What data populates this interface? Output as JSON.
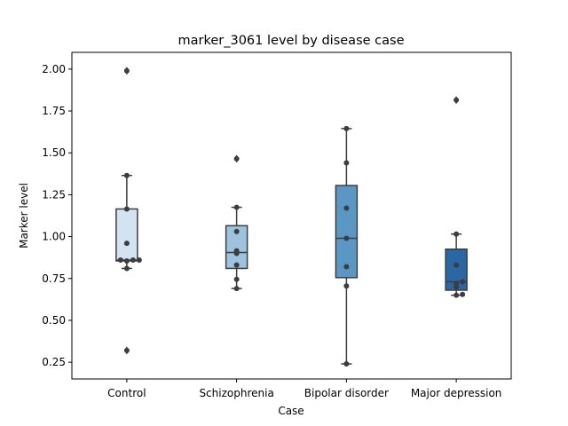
{
  "chart_data": {
    "type": "box",
    "title": "marker_3061 level by disease case",
    "xlabel": "Case",
    "ylabel": "Marker level",
    "ylim": [
      0.15,
      2.1
    ],
    "yticks": [
      "0.25",
      "0.50",
      "0.75",
      "1.00",
      "1.25",
      "1.50",
      "1.75",
      "2.00"
    ],
    "grid": false,
    "legend": "none",
    "categories": [
      "Control",
      "Schizophrenia",
      "Bipolar disorder",
      "Major depression"
    ],
    "colors": [
      "#d4e3f2",
      "#9dc3de",
      "#5b97c4",
      "#2b67a4"
    ],
    "boxes": [
      {
        "q1": 0.855,
        "median": 0.86,
        "q3": 1.165,
        "whisker_low": 0.81,
        "whisker_high": 1.365,
        "outliers": [
          0.32,
          1.99
        ]
      },
      {
        "q1": 0.81,
        "median": 0.905,
        "q3": 1.065,
        "whisker_low": 0.69,
        "whisker_high": 1.175,
        "outliers": [
          1.465
        ]
      },
      {
        "q1": 0.755,
        "median": 0.99,
        "q3": 1.305,
        "whisker_low": 0.24,
        "whisker_high": 1.645,
        "outliers": []
      },
      {
        "q1": 0.68,
        "median": 0.73,
        "q3": 0.925,
        "whisker_low": 0.65,
        "whisker_high": 1.015,
        "outliers": [
          1.815
        ]
      }
    ],
    "points": [
      [
        0.32,
        0.81,
        0.855,
        0.86,
        0.86,
        0.86,
        0.96,
        1.165,
        1.365,
        1.99
      ],
      [
        0.69,
        0.745,
        0.83,
        0.9,
        0.915,
        1.03,
        1.175,
        1.465
      ],
      [
        0.24,
        0.705,
        0.82,
        0.99,
        1.17,
        1.44,
        1.645
      ],
      [
        0.65,
        0.655,
        0.7,
        0.72,
        0.73,
        0.83,
        1.015,
        1.815
      ]
    ]
  }
}
